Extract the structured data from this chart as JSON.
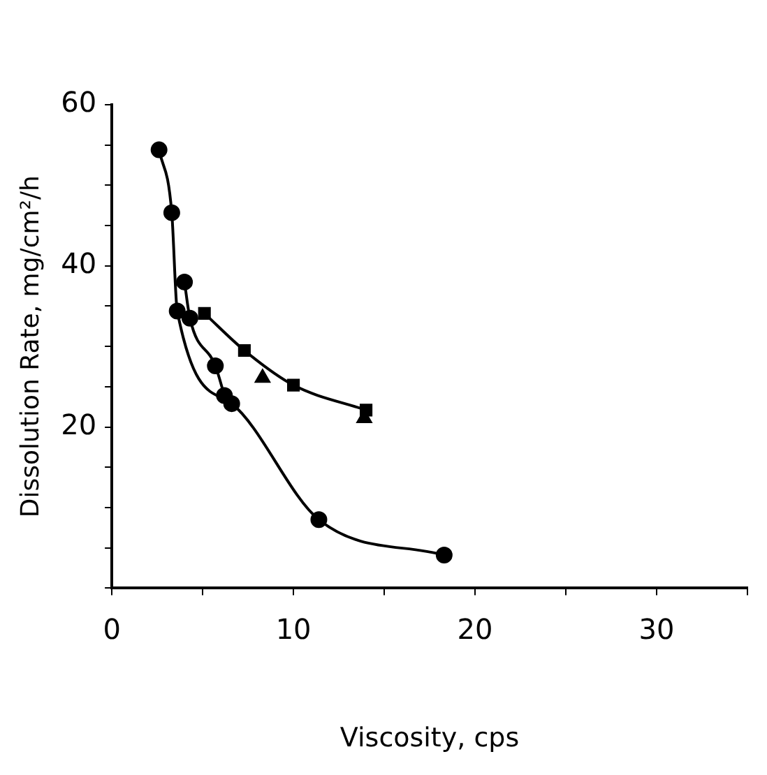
{
  "chart_data": {
    "type": "line",
    "xlabel": "Viscosity, cps",
    "ylabel": "Dissolution Rate, mg/cm²/h",
    "xlim": [
      0,
      35
    ],
    "xticks": [
      0,
      {
        "value": 5,
        "label": null
      },
      10,
      {
        "value": 15,
        "label": null
      },
      20,
      {
        "value": 25,
        "label": null
      },
      30,
      {
        "value": 35,
        "label": null
      }
    ],
    "ylim": [
      0,
      60
    ],
    "yticks": [
      {
        "value": 0,
        "label": null
      },
      {
        "value": 5,
        "label": null
      },
      {
        "value": 10,
        "label": null
      },
      {
        "value": 15,
        "label": null
      },
      20,
      {
        "value": 25,
        "label": null
      },
      {
        "value": 30,
        "label": null
      },
      {
        "value": 35,
        "label": null
      },
      40,
      {
        "value": 45,
        "label": null
      },
      {
        "value": 50,
        "label": null
      },
      {
        "value": 55,
        "label": null
      },
      60
    ],
    "grid": false,
    "legend": false,
    "line_style": "solid",
    "series": [
      {
        "color": "#000000",
        "marker": "circle",
        "x": [
          2.6,
          3.3,
          3.6,
          6.6,
          11.4,
          18.3
        ],
        "values": [
          54.4,
          46.6,
          34.4,
          22.9,
          8.5,
          4.1
        ]
      },
      {
        "color": "#000000",
        "marker": "circle",
        "x": [
          4.0,
          4.3,
          5.7,
          6.2
        ],
        "values": [
          38.0,
          33.5,
          27.6,
          23.9
        ]
      },
      {
        "color": "#000000",
        "marker": "square",
        "x": [
          5.1,
          7.3,
          10.0,
          14.0
        ],
        "values": [
          34.1,
          29.5,
          25.2,
          22.1
        ]
      },
      {
        "type": "scatter",
        "color": "#000000",
        "marker": "triangle",
        "x": [
          8.3,
          13.9
        ],
        "values": [
          26.1,
          21.1
        ]
      }
    ]
  }
}
